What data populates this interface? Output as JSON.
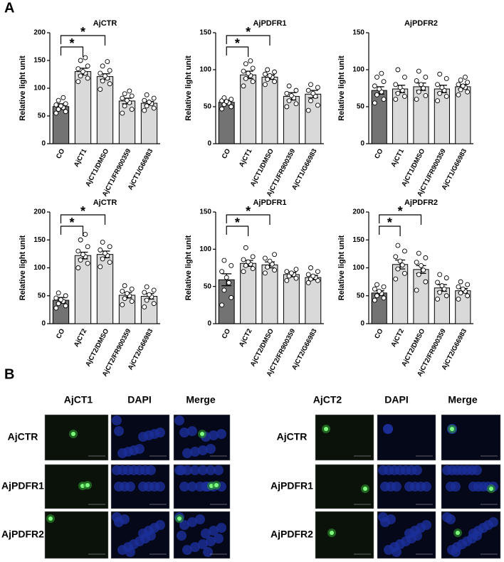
{
  "panel_labels": [
    "A",
    "B"
  ],
  "chart_data": [
    {
      "type": "bar",
      "title": "AjCTR",
      "ylabel": "Relative light unit",
      "categories": [
        "CO",
        "AjCT1",
        "AjCT1/DMSO",
        "AjCT1/FR900359",
        "AjCT1/G66983"
      ],
      "values": [
        67,
        130,
        121,
        77,
        73
      ],
      "errors": [
        5,
        6,
        5,
        5,
        3
      ],
      "points": [
        [
          55,
          58,
          62,
          65,
          68,
          70,
          72,
          78,
          83
        ],
        [
          112,
          118,
          122,
          127,
          130,
          135,
          140,
          150,
          155
        ],
        [
          98,
          108,
          113,
          118,
          122,
          127,
          132,
          140,
          148
        ],
        [
          55,
          62,
          68,
          74,
          78,
          82,
          86,
          90,
          95
        ],
        [
          60,
          64,
          68,
          72,
          75,
          78,
          82,
          88
        ]
      ],
      "colors": [
        "#737373",
        "#d9d9d9",
        "#d9d9d9",
        "#d9d9d9",
        "#d9d9d9"
      ],
      "ylim": [
        0,
        200
      ],
      "yticks": [
        0,
        50,
        100,
        150,
        200
      ],
      "annotations": [
        "*",
        "*"
      ]
    },
    {
      "type": "bar",
      "title": "AjPDFR1",
      "ylabel": "Relative light unit",
      "categories": [
        "CO",
        "AjCT1",
        "AjCT1/DMSO",
        "AjCT1/FR900359",
        "AjCT1/G66983"
      ],
      "values": [
        56,
        93,
        90,
        64,
        67
      ],
      "errors": [
        3,
        5,
        3,
        5,
        5
      ],
      "points": [
        [
          47,
          50,
          53,
          55,
          57,
          58,
          60,
          62
        ],
        [
          78,
          84,
          88,
          92,
          95,
          98,
          102,
          108,
          112
        ],
        [
          80,
          84,
          87,
          90,
          92,
          94,
          97,
          100
        ],
        [
          50,
          54,
          58,
          62,
          65,
          68,
          72,
          78
        ],
        [
          45,
          52,
          58,
          64,
          68,
          72,
          76,
          80
        ]
      ],
      "colors": [
        "#737373",
        "#d9d9d9",
        "#d9d9d9",
        "#d9d9d9",
        "#d9d9d9"
      ],
      "ylim": [
        0,
        150
      ],
      "yticks": [
        0,
        50,
        100,
        150
      ],
      "annotations": [
        "*",
        "*"
      ]
    },
    {
      "type": "bar",
      "title": "AjPDFR2",
      "ylabel": "Relative light unit",
      "categories": [
        "CO",
        "AjCT1",
        "AjCT1/DMSO",
        "AjCT1/FR900359",
        "AjCT1/G66983"
      ],
      "values": [
        72,
        74,
        77,
        74,
        77
      ],
      "errors": [
        5,
        5,
        5,
        5,
        3
      ],
      "points": [
        [
          55,
          60,
          66,
          70,
          74,
          78,
          84,
          90,
          95
        ],
        [
          60,
          64,
          68,
          72,
          76,
          80,
          90,
          100
        ],
        [
          60,
          65,
          70,
          75,
          80,
          85,
          90,
          98
        ],
        [
          58,
          64,
          68,
          72,
          76,
          80,
          88,
          94
        ],
        [
          66,
          70,
          73,
          76,
          78,
          80,
          83,
          86,
          90
        ]
      ],
      "colors": [
        "#737373",
        "#d9d9d9",
        "#d9d9d9",
        "#d9d9d9",
        "#d9d9d9"
      ],
      "ylim": [
        0,
        150
      ],
      "yticks": [
        0,
        50,
        100,
        150
      ],
      "annotations": []
    },
    {
      "type": "bar",
      "title": "AjCTR",
      "ylabel": "Relative light unit",
      "categories": [
        "CO",
        "AjCT2",
        "AjCT2/DMSO",
        "AjCT2/FR900359",
        "AjCT2/G66983"
      ],
      "values": [
        42,
        122,
        124,
        51,
        49
      ],
      "errors": [
        5,
        6,
        6,
        5,
        5
      ],
      "points": [
        [
          28,
          32,
          36,
          40,
          43,
          46,
          50,
          55
        ],
        [
          100,
          108,
          114,
          120,
          124,
          130,
          138,
          150,
          160
        ],
        [
          102,
          110,
          116,
          122,
          126,
          132,
          138,
          146
        ],
        [
          34,
          40,
          45,
          50,
          54,
          58,
          62,
          68
        ],
        [
          30,
          36,
          42,
          48,
          52,
          56,
          60,
          66
        ]
      ],
      "colors": [
        "#737373",
        "#d9d9d9",
        "#d9d9d9",
        "#d9d9d9",
        "#d9d9d9"
      ],
      "ylim": [
        0,
        200
      ],
      "yticks": [
        0,
        50,
        100,
        150,
        200
      ],
      "annotations": [
        "*",
        "*"
      ]
    },
    {
      "type": "bar",
      "title": "AjPDFR1",
      "ylabel": "Relative light unit",
      "categories": [
        "CO",
        "AjCT2",
        "AjCT2/DMSO",
        "AjCT2/FR900359",
        "AjCT2/G66983"
      ],
      "values": [
        59,
        81,
        79,
        66,
        62
      ],
      "errors": [
        8,
        4,
        4,
        3,
        3
      ],
      "points": [
        [
          25,
          35,
          45,
          55,
          62,
          70,
          78,
          85
        ],
        [
          70,
          74,
          78,
          80,
          83,
          86,
          90,
          102
        ],
        [
          68,
          72,
          76,
          80,
          84,
          88,
          93
        ],
        [
          58,
          61,
          64,
          66,
          68,
          70,
          73
        ],
        [
          55,
          58,
          60,
          62,
          64,
          66,
          70,
          75
        ]
      ],
      "colors": [
        "#737373",
        "#d9d9d9",
        "#d9d9d9",
        "#d9d9d9",
        "#d9d9d9"
      ],
      "ylim": [
        0,
        150
      ],
      "yticks": [
        0,
        50,
        100,
        150
      ],
      "annotations": [
        "*",
        "*"
      ]
    },
    {
      "type": "bar",
      "title": "AjPDFR2",
      "ylabel": "Relative light unit",
      "categories": [
        "CO",
        "AjCT2",
        "AjCT2/DMSO",
        "AjCT2/FR900359",
        "AjCT2/G66983"
      ],
      "values": [
        55,
        106,
        97,
        64,
        59
      ],
      "errors": [
        4,
        8,
        7,
        6,
        4
      ],
      "points": [
        [
          42,
          46,
          50,
          54,
          58,
          62,
          66,
          70
        ],
        [
          80,
          90,
          98,
          105,
          112,
          120,
          130,
          140
        ],
        [
          60,
          75,
          88,
          96,
          104,
          110,
          118,
          126
        ],
        [
          44,
          50,
          56,
          62,
          68,
          74,
          82,
          88
        ],
        [
          44,
          50,
          55,
          58,
          62,
          66,
          70,
          75
        ]
      ],
      "colors": [
        "#737373",
        "#d9d9d9",
        "#d9d9d9",
        "#d9d9d9",
        "#d9d9d9"
      ],
      "ylim": [
        0,
        200
      ],
      "yticks": [
        0,
        50,
        100,
        150,
        200
      ],
      "annotations": [
        "*",
        "*"
      ]
    }
  ],
  "microscopy": [
    {
      "columns": [
        "AjCT1",
        "DAPI",
        "Merge"
      ],
      "rows": [
        "AjCTR",
        "AjPDFR1",
        "AjPDFR2"
      ]
    },
    {
      "columns": [
        "AjCT2",
        "DAPI",
        "Merge"
      ],
      "rows": [
        "AjCTR",
        "AjPDFR1",
        "AjPDFR2"
      ]
    }
  ]
}
